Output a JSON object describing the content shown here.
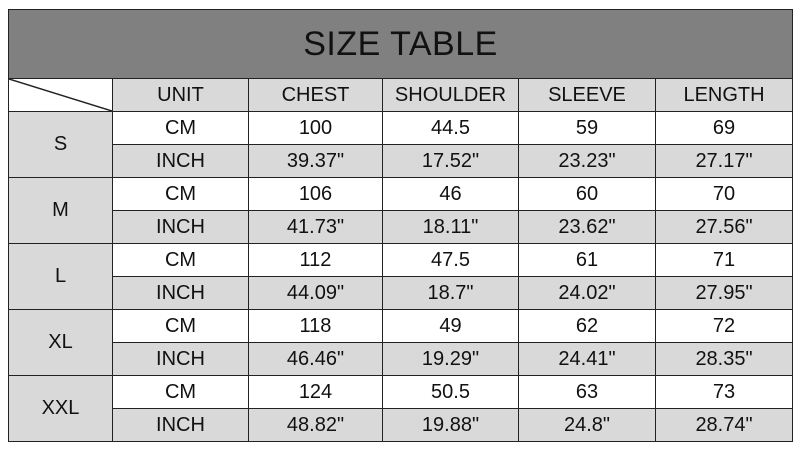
{
  "title": "SIZE TABLE",
  "headers": [
    "UNIT",
    "CHEST",
    "SHOULDER",
    "SLEEVE",
    "LENGTH"
  ],
  "colors": {
    "title_bg": "#808080",
    "cell_gray": "#d9d9d9"
  },
  "sizes": [
    {
      "size": "S",
      "rows": [
        {
          "unit": "CM",
          "values": [
            "100",
            "44.5",
            "59",
            "69"
          ]
        },
        {
          "unit": "INCH",
          "values": [
            "39.37\"",
            "17.52\"",
            "23.23\"",
            "27.17\""
          ]
        }
      ]
    },
    {
      "size": "M",
      "rows": [
        {
          "unit": "CM",
          "values": [
            "106",
            "46",
            "60",
            "70"
          ]
        },
        {
          "unit": "INCH",
          "values": [
            "41.73\"",
            "18.11\"",
            "23.62\"",
            "27.56\""
          ]
        }
      ]
    },
    {
      "size": "L",
      "rows": [
        {
          "unit": "CM",
          "values": [
            "112",
            "47.5",
            "61",
            "71"
          ]
        },
        {
          "unit": "INCH",
          "values": [
            "44.09\"",
            "18.7\"",
            "24.02\"",
            "27.95\""
          ]
        }
      ]
    },
    {
      "size": "XL",
      "rows": [
        {
          "unit": "CM",
          "values": [
            "118",
            "49",
            "62",
            "72"
          ]
        },
        {
          "unit": "INCH",
          "values": [
            "46.46\"",
            "19.29\"",
            "24.41\"",
            "28.35\""
          ]
        }
      ]
    },
    {
      "size": "XXL",
      "rows": [
        {
          "unit": "CM",
          "values": [
            "124",
            "50.5",
            "63",
            "73"
          ]
        },
        {
          "unit": "INCH",
          "values": [
            "48.82\"",
            "19.88\"",
            "24.8\"",
            "28.74\""
          ]
        }
      ]
    }
  ]
}
